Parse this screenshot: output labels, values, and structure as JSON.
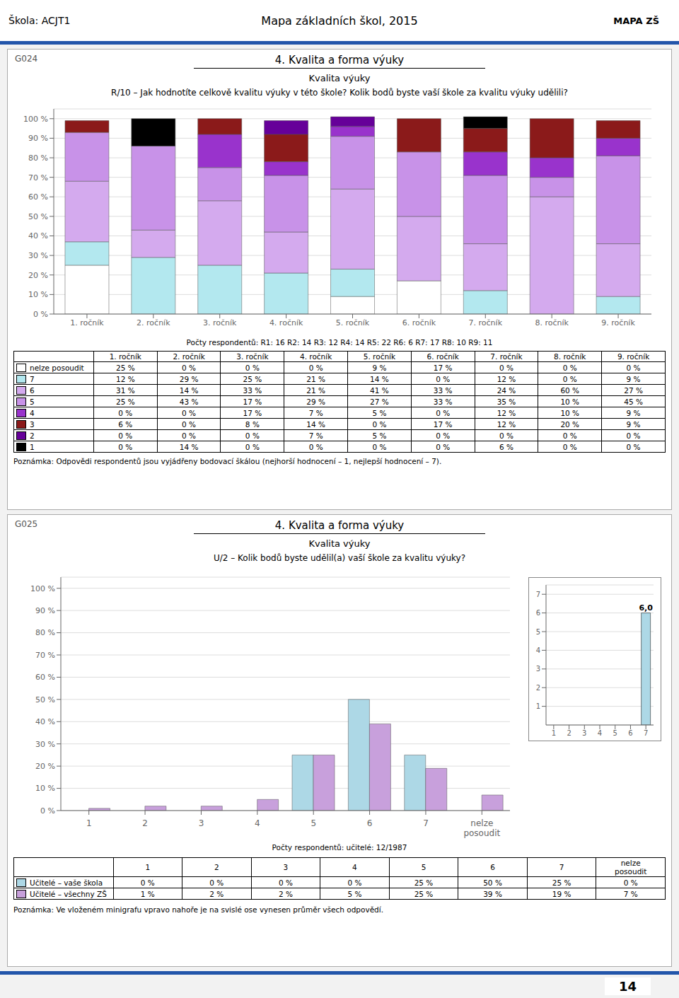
{
  "header": {
    "school": "Škola: ACJT1",
    "title": "Mapa základních škol, 2015",
    "logo": "MAPA ZŠ",
    "page_number": "14"
  },
  "chart_data": [
    {
      "type": "bar",
      "stacked": true,
      "section_id": "G024",
      "title": "4. Kvalita a forma výuky",
      "subtitle": "Kvalita výuky",
      "question": "R/10 – Jak hodnotíte celkově kvalitu výuky v této škole? Kolik bodů byste vaší škole za kvalitu výuky udělili?",
      "respondents": "Počty respondentů:   R1: 16   R2: 14   R3: 12   R4: 14   R5: 22   R6: 6   R7: 17   R8: 10   R9: 11",
      "note": "Poznámka:   Odpovědi respondentů jsou vyjádřeny bodovací škálou (nejhorší hodnocení – 1, nejlepší hodnocení – 7).",
      "categories": [
        "1. ročník",
        "2. ročník",
        "3. ročník",
        "4. ročník",
        "5. ročník",
        "6. ročník",
        "7. ročník",
        "8. ročník",
        "9. ročník"
      ],
      "series": [
        {
          "name": "nelze posoudit",
          "color": "#ffffff",
          "values": [
            25,
            0,
            0,
            0,
            9,
            17,
            0,
            0,
            0
          ],
          "value_labels": [
            "25 %",
            "0 %",
            "0 %",
            "0 %",
            "9 %",
            "17 %",
            "0 %",
            "0 %",
            "0 %"
          ]
        },
        {
          "name": "7",
          "color": "#b3e8ef",
          "values": [
            12,
            29,
            25,
            21,
            14,
            0,
            12,
            0,
            9
          ],
          "value_labels": [
            "12 %",
            "29 %",
            "25 %",
            "21 %",
            "14 %",
            "0 %",
            "12 %",
            "0 %",
            "9 %"
          ]
        },
        {
          "name": "6",
          "color": "#d4aaee",
          "values": [
            31,
            14,
            33,
            21,
            41,
            33,
            24,
            60,
            27
          ],
          "value_labels": [
            "31 %",
            "14 %",
            "33 %",
            "21 %",
            "41 %",
            "33 %",
            "24 %",
            "60 %",
            "27 %"
          ]
        },
        {
          "name": "5",
          "color": "#c892e8",
          "values": [
            25,
            43,
            17,
            29,
            27,
            33,
            35,
            10,
            45
          ],
          "value_labels": [
            "25 %",
            "43 %",
            "17 %",
            "29 %",
            "27 %",
            "33 %",
            "35 %",
            "10 %",
            "45 %"
          ]
        },
        {
          "name": "4",
          "color": "#9933cc",
          "values": [
            0,
            0,
            17,
            7,
            5,
            0,
            12,
            10,
            9
          ],
          "value_labels": [
            "0 %",
            "0 %",
            "17 %",
            "7 %",
            "5 %",
            "0 %",
            "12 %",
            "10 %",
            "9 %"
          ]
        },
        {
          "name": "3",
          "color": "#8b1a1a",
          "values": [
            6,
            0,
            8,
            14,
            0,
            17,
            12,
            20,
            9
          ],
          "value_labels": [
            "6 %",
            "0 %",
            "8 %",
            "14 %",
            "0 %",
            "17 %",
            "12 %",
            "20 %",
            "9 %"
          ]
        },
        {
          "name": "2",
          "color": "#660099",
          "values": [
            0,
            0,
            0,
            7,
            5,
            0,
            0,
            0,
            0
          ],
          "value_labels": [
            "0 %",
            "0 %",
            "0 %",
            "7 %",
            "5 %",
            "0 %",
            "0 %",
            "0 %",
            "0 %"
          ]
        },
        {
          "name": "1",
          "color": "#000000",
          "values": [
            0,
            14,
            0,
            0,
            0,
            0,
            6,
            0,
            0
          ],
          "value_labels": [
            "0 %",
            "14 %",
            "0 %",
            "0 %",
            "0 %",
            "0 %",
            "6 %",
            "0 %",
            "0 %"
          ]
        }
      ],
      "ylim": [
        0,
        105
      ],
      "yticks": [
        {
          "value": 0,
          "label": "0 %"
        },
        {
          "value": 10,
          "label": "10 %"
        },
        {
          "value": 20,
          "label": "20 %"
        },
        {
          "value": 30,
          "label": "30 %"
        },
        {
          "value": 40,
          "label": "40 %"
        },
        {
          "value": 50,
          "label": "50 %"
        },
        {
          "value": 60,
          "label": "60 %"
        },
        {
          "value": 70,
          "label": "70 %"
        },
        {
          "value": 80,
          "label": "80 %"
        },
        {
          "value": 90,
          "label": "90 %"
        },
        {
          "value": 100,
          "label": "100 %"
        }
      ],
      "grid": true
    },
    {
      "type": "bar",
      "section_id": "G025",
      "title": "4. Kvalita a forma výuky",
      "subtitle": "Kvalita výuky",
      "question": "U/2 – Kolik bodů byste udělil(a) vaší škole za kvalitu výuky?",
      "respondents": "Počty respondentů:   učitelé: 12/1987",
      "note": "Poznámka:   Ve vloženém minigrafu vpravo nahoře je na svislé ose vynesen průměr všech odpovědí.",
      "categories": [
        "1",
        "2",
        "3",
        "4",
        "5",
        "6",
        "7",
        "nelze\nposoudit"
      ],
      "series": [
        {
          "name": "Učitelé – vaše škola",
          "color": "#add8e6",
          "values": [
            0,
            0,
            0,
            0,
            25,
            50,
            25,
            0
          ],
          "value_labels": [
            "0 %",
            "0 %",
            "0 %",
            "0 %",
            "25 %",
            "50 %",
            "25 %",
            "0 %"
          ]
        },
        {
          "name": "Učitelé – všechny ZŠ",
          "color": "#c8a0dc",
          "values": [
            1,
            2,
            2,
            5,
            25,
            39,
            19,
            7
          ],
          "value_labels": [
            "1 %",
            "2 %",
            "2 %",
            "5 %",
            "25 %",
            "39 %",
            "19 %",
            "7 %"
          ]
        }
      ],
      "ylim": [
        0,
        105
      ],
      "yticks": [
        {
          "value": 0,
          "label": "0 %"
        },
        {
          "value": 10,
          "label": "10 %"
        },
        {
          "value": 20,
          "label": "20 %"
        },
        {
          "value": 30,
          "label": "30 %"
        },
        {
          "value": 40,
          "label": "40 %"
        },
        {
          "value": 50,
          "label": "50 %"
        },
        {
          "value": 60,
          "label": "60 %"
        },
        {
          "value": 70,
          "label": "70 %"
        },
        {
          "value": 80,
          "label": "80 %"
        },
        {
          "value": 90,
          "label": "90 %"
        },
        {
          "value": 100,
          "label": "100 %"
        }
      ],
      "grid": true
    },
    {
      "type": "bar",
      "categories": [
        "1",
        "2",
        "3",
        "4",
        "5",
        "6",
        "7"
      ],
      "values": [
        0,
        0,
        0,
        0,
        0,
        0,
        6.0
      ],
      "value_labels": [
        null,
        null,
        null,
        null,
        null,
        null,
        "6,0"
      ],
      "data_labels": true,
      "color": "#add8e6",
      "ylim": [
        0,
        7.5
      ],
      "yticks": [
        1,
        2,
        3,
        4,
        5,
        6,
        7
      ],
      "grid": true
    }
  ]
}
